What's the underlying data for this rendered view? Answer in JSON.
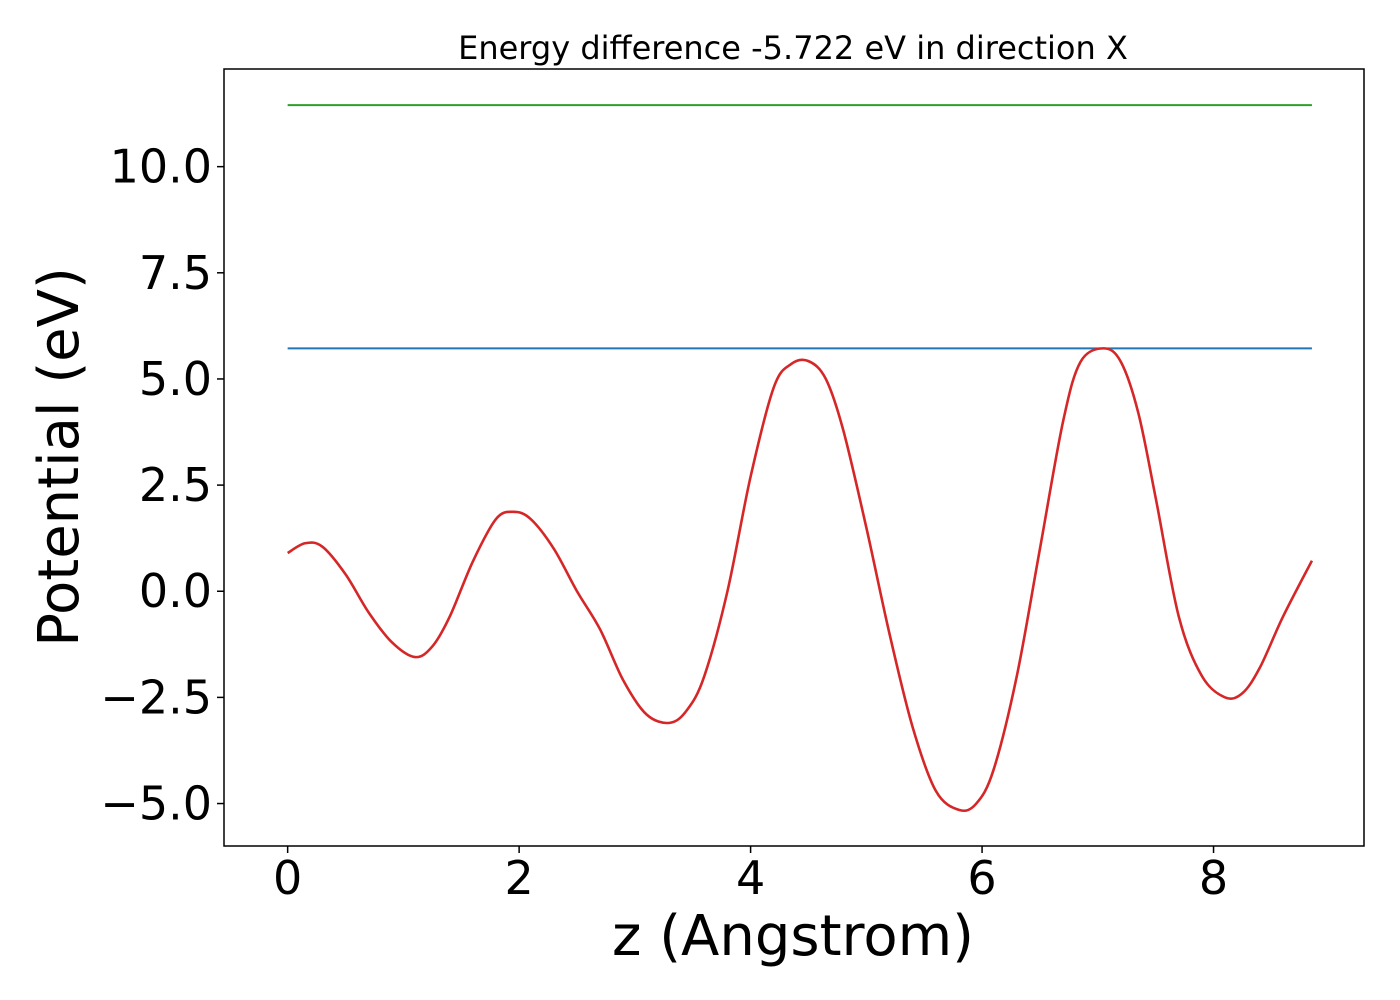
{
  "chart_data": {
    "type": "line",
    "title": "Energy difference -5.722 eV in direction X",
    "xlabel": "z (Angstrom)",
    "ylabel": "Potential (eV)",
    "xlim": [
      -0.55,
      9.3
    ],
    "ylim": [
      -6.0,
      12.3
    ],
    "xticks": [
      0,
      2,
      4,
      6,
      8
    ],
    "xtick_labels": [
      "0",
      "2",
      "4",
      "6",
      "8"
    ],
    "yticks": [
      -5.0,
      -2.5,
      0.0,
      2.5,
      5.0,
      7.5,
      10.0
    ],
    "ytick_labels": [
      "−5.0",
      "−2.5",
      "0.0",
      "2.5",
      "5.0",
      "7.5",
      "10.0"
    ],
    "grid": false,
    "series": [
      {
        "color": "#2ca02c",
        "x": [
          0,
          8.85
        ],
        "y": [
          11.45,
          11.45
        ]
      },
      {
        "color": "#1f77b4",
        "x": [
          0,
          8.85
        ],
        "y": [
          5.72,
          5.72
        ]
      },
      {
        "color": "#d62728",
        "x": [
          0,
          0.15,
          0.3,
          0.5,
          0.7,
          0.9,
          1.1,
          1.25,
          1.4,
          1.6,
          1.8,
          1.95,
          2.1,
          2.3,
          2.5,
          2.7,
          2.9,
          3.1,
          3.3,
          3.45,
          3.6,
          3.8,
          4.0,
          4.2,
          4.35,
          4.5,
          4.65,
          4.8,
          5.0,
          5.2,
          5.4,
          5.6,
          5.8,
          5.95,
          6.1,
          6.3,
          6.5,
          6.7,
          6.85,
          7.05,
          7.2,
          7.35,
          7.5,
          7.7,
          7.9,
          8.1,
          8.25,
          8.4,
          8.6,
          8.85
        ],
        "y": [
          0.9,
          1.13,
          1.05,
          0.4,
          -0.5,
          -1.2,
          -1.55,
          -1.3,
          -0.6,
          0.7,
          1.7,
          1.87,
          1.7,
          1.0,
          0.0,
          -0.9,
          -2.1,
          -2.9,
          -3.1,
          -2.8,
          -2.0,
          0.0,
          2.7,
          4.8,
          5.35,
          5.42,
          5.0,
          3.8,
          1.5,
          -1.0,
          -3.2,
          -4.7,
          -5.15,
          -5.0,
          -4.2,
          -2.0,
          1.0,
          4.0,
          5.4,
          5.72,
          5.4,
          4.2,
          2.2,
          -0.6,
          -2.0,
          -2.5,
          -2.4,
          -1.8,
          -0.6,
          0.72
        ]
      }
    ]
  }
}
